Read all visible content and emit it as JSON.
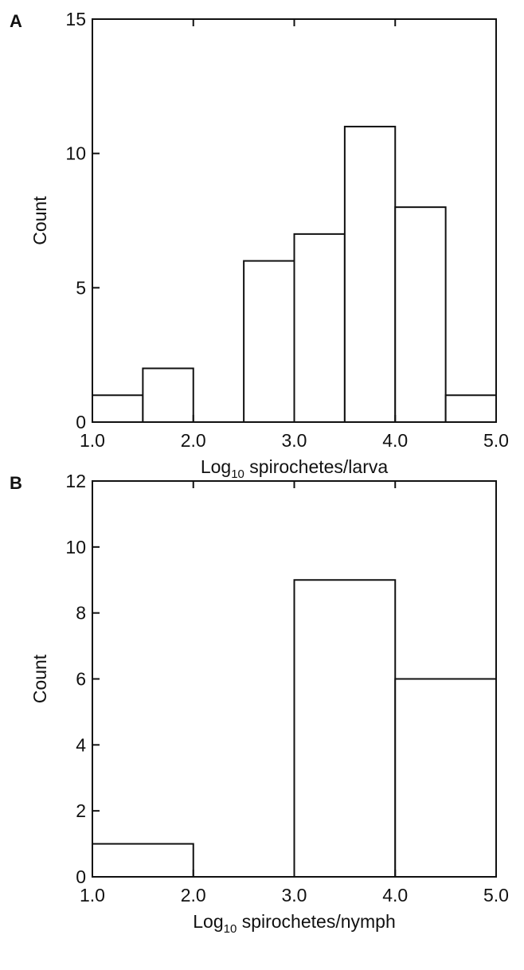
{
  "chart_data": [
    {
      "type": "histogram",
      "panel_label": "A",
      "bins": [
        1.0,
        1.5,
        2.0,
        2.5,
        3.0,
        3.5,
        4.0,
        4.5,
        5.0
      ],
      "values": [
        1,
        2,
        0,
        6,
        7,
        11,
        8,
        1
      ],
      "color": "#ffffff",
      "xlabel": [
        "Log",
        "10",
        " spirochetes/larva"
      ],
      "ylabel": "Count",
      "xlim": [
        1,
        5
      ],
      "ylim": [
        0,
        15
      ],
      "xticks": [
        {
          "value": 1,
          "label": "1.0"
        },
        {
          "value": 2,
          "label": "2.0"
        },
        {
          "value": 3,
          "label": "3.0"
        },
        {
          "value": 4,
          "label": "4.0"
        },
        {
          "value": 5,
          "label": "5.0"
        }
      ],
      "yticks": [
        0,
        5,
        10,
        15
      ]
    },
    {
      "type": "histogram",
      "panel_label": "B",
      "bins": [
        1,
        2,
        3,
        4,
        5
      ],
      "values": [
        1,
        0,
        9,
        6
      ],
      "color": "#ffffff",
      "xlabel": [
        "Log",
        "10",
        " spirochetes/nymph"
      ],
      "ylabel": "Count",
      "xlim": [
        1,
        5
      ],
      "ylim": [
        0,
        12
      ],
      "xticks": [
        {
          "value": 1,
          "label": "1.0"
        },
        {
          "value": 2,
          "label": "2.0"
        },
        {
          "value": 3,
          "label": "3.0"
        },
        {
          "value": 4,
          "label": "4.0"
        },
        {
          "value": 5,
          "label": "5.0"
        }
      ],
      "yticks": [
        0,
        2,
        4,
        6,
        8,
        10,
        12
      ]
    }
  ]
}
